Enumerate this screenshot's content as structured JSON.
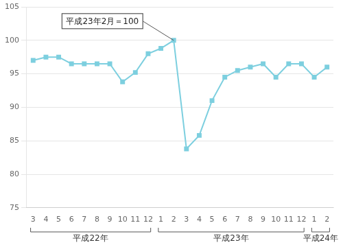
{
  "chart_data": {
    "type": "line",
    "categories": [
      "3",
      "4",
      "5",
      "6",
      "7",
      "8",
      "9",
      "10",
      "11",
      "12",
      "1",
      "2",
      "3",
      "4",
      "5",
      "6",
      "7",
      "8",
      "9",
      "10",
      "11",
      "12",
      "1",
      "2"
    ],
    "values": [
      97.0,
      97.5,
      97.5,
      96.5,
      96.5,
      96.5,
      96.5,
      93.8,
      95.2,
      98.0,
      98.8,
      100.0,
      83.8,
      85.8,
      91.0,
      94.5,
      95.5,
      96.0,
      96.5,
      94.5,
      96.5,
      96.5,
      94.5,
      96.0
    ],
    "color": "#7dcfdf",
    "marker": "square",
    "ylim": [
      75,
      105
    ],
    "yticks": [
      75,
      80,
      85,
      90,
      95,
      100,
      105
    ],
    "grid": true,
    "annotations": [
      {
        "text": "平成23年2月＝100",
        "category_index": 11,
        "value": 100.0
      }
    ],
    "x_groups": [
      {
        "label": "平成22年",
        "from": 0,
        "to": 9
      },
      {
        "label": "平成23年",
        "from": 10,
        "to": 21
      },
      {
        "label": "平成24年",
        "from": 22,
        "to": 23
      }
    ]
  }
}
